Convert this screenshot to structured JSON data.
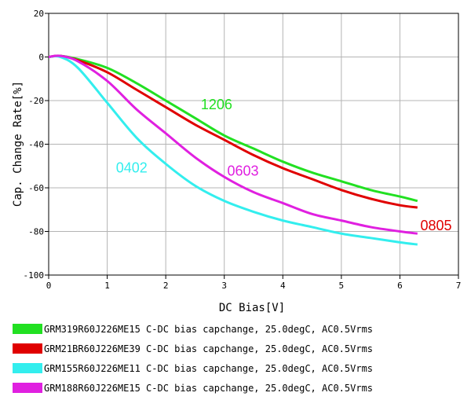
{
  "chart_data": {
    "type": "line",
    "title": "",
    "xlabel": "DC Bias[V]",
    "ylabel": "Cap. Change Rate[%]",
    "xlim": [
      0,
      7
    ],
    "ylim": [
      -100,
      20
    ],
    "xticks": [
      0,
      1,
      2,
      3,
      4,
      5,
      6,
      7
    ],
    "yticks": [
      20,
      0,
      -20,
      -40,
      -60,
      -80,
      -100
    ],
    "grid": true,
    "series": [
      {
        "name": "GRM319R60J226ME15",
        "label": "1206",
        "color": "#22e022",
        "legend": "GRM319R60J226ME15 C-DC bias capchange, 25.0degC, AC0.5Vrms",
        "x": [
          0,
          0.2,
          0.5,
          1.0,
          1.5,
          2.0,
          2.5,
          3.0,
          3.5,
          4.0,
          4.5,
          5.0,
          5.5,
          6.0,
          6.3
        ],
        "y": [
          0,
          0.5,
          -1,
          -5,
          -12,
          -20,
          -28,
          -36,
          -42,
          -48,
          -53,
          -57,
          -61,
          -64,
          -66
        ]
      },
      {
        "name": "GRM21BR60J226ME39",
        "label": "0805",
        "color": "#e00000",
        "legend": "GRM21BR60J226ME39 C-DC bias capchange, 25.0degC, AC0.5Vrms",
        "x": [
          0,
          0.2,
          0.5,
          1.0,
          1.5,
          2.0,
          2.5,
          3.0,
          3.5,
          4.0,
          4.5,
          5.0,
          5.5,
          6.0,
          6.3
        ],
        "y": [
          0,
          0.5,
          -1.5,
          -7,
          -15,
          -23,
          -31,
          -38,
          -45,
          -51,
          -56,
          -61,
          -65,
          -68,
          -69
        ]
      },
      {
        "name": "GRM155R60J226ME11",
        "label": "0402",
        "color": "#33eeee",
        "legend": "GRM155R60J226ME11 C-DC bias capchange, 25.0degC, AC0.5Vrms",
        "x": [
          0,
          0.2,
          0.5,
          1.0,
          1.5,
          2.0,
          2.5,
          3.0,
          3.5,
          4.0,
          4.5,
          5.0,
          5.5,
          6.0,
          6.3
        ],
        "y": [
          0,
          0,
          -5,
          -21,
          -37,
          -49,
          -59,
          -66,
          -71,
          -75,
          -78,
          -81,
          -83,
          -85,
          -86
        ]
      },
      {
        "name": "GRM188R60J226ME15",
        "label": "0603",
        "color": "#e020e0",
        "legend": "GRM188R60J226ME15 C-DC bias capchange, 25.0degC, AC0.5Vrms",
        "x": [
          0,
          0.2,
          0.5,
          1.0,
          1.5,
          2.0,
          2.5,
          3.0,
          3.5,
          4.0,
          4.5,
          5.0,
          5.5,
          6.0,
          6.3
        ],
        "y": [
          0,
          0.5,
          -2,
          -11,
          -24,
          -35,
          -46,
          -55,
          -62,
          -67,
          -72,
          -75,
          -78,
          -80,
          -81
        ]
      }
    ],
    "annotations": [
      {
        "series": 0,
        "text": "1206",
        "x": 2.6,
        "y": -24
      },
      {
        "series": 1,
        "text": "0805",
        "x": 6.35,
        "y": -79.5
      },
      {
        "series": 2,
        "text": "0402",
        "x": 1.15,
        "y": -53
      },
      {
        "series": 3,
        "text": "0603",
        "x": 3.05,
        "y": -54.5
      }
    ]
  }
}
